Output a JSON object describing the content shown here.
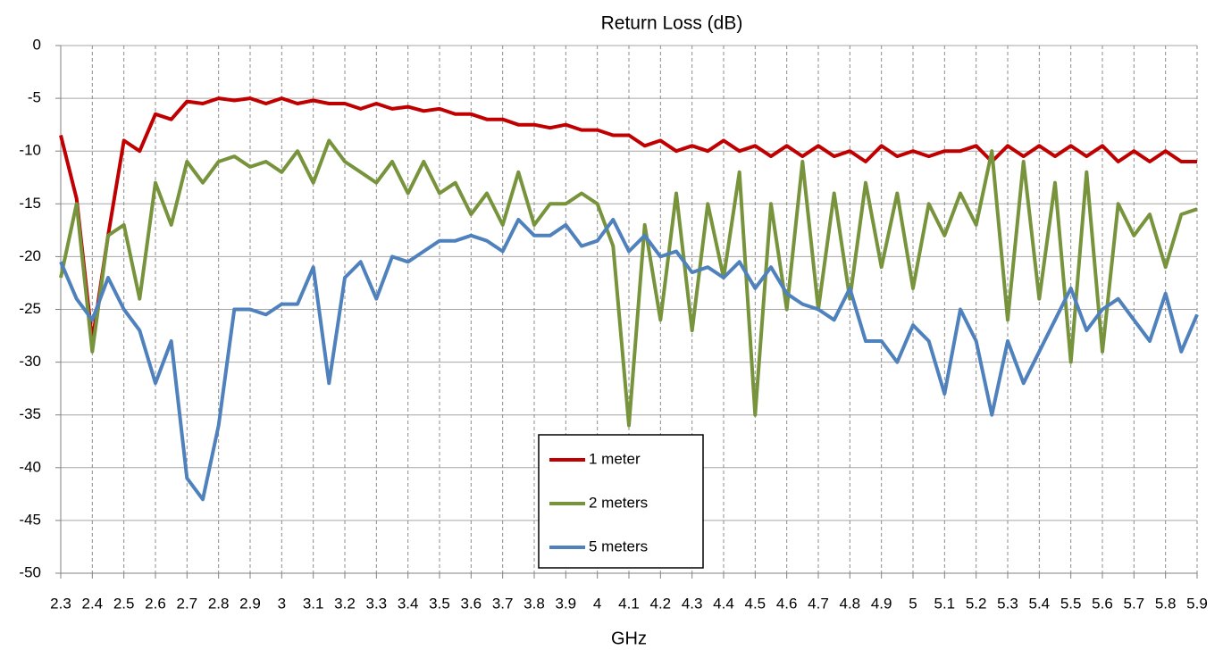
{
  "chart_data": {
    "type": "line",
    "title": "Return Loss (dB)",
    "xlabel": "GHz",
    "x": [
      2.3,
      2.35,
      2.4,
      2.45,
      2.5,
      2.55,
      2.6,
      2.65,
      2.7,
      2.75,
      2.8,
      2.85,
      2.9,
      2.95,
      3.0,
      3.05,
      3.1,
      3.15,
      3.2,
      3.25,
      3.3,
      3.35,
      3.4,
      3.45,
      3.5,
      3.55,
      3.6,
      3.65,
      3.7,
      3.75,
      3.8,
      3.85,
      3.9,
      3.95,
      4.0,
      4.05,
      4.1,
      4.15,
      4.2,
      4.25,
      4.3,
      4.35,
      4.4,
      4.45,
      4.5,
      4.55,
      4.6,
      4.65,
      4.7,
      4.75,
      4.8,
      4.85,
      4.9,
      4.95,
      5.0,
      5.05,
      5.1,
      5.15,
      5.2,
      5.25,
      5.3,
      5.35,
      5.4,
      5.45,
      5.5,
      5.55,
      5.6,
      5.65,
      5.7,
      5.75,
      5.8,
      5.85,
      5.9
    ],
    "series": [
      {
        "name": "1 meter",
        "color": "#c00000",
        "values": [
          -8.5,
          -14.5,
          -28,
          -18,
          -9,
          -10,
          -6.5,
          -7,
          -5.3,
          -5.5,
          -5,
          -5.2,
          -5,
          -5.5,
          -5,
          -5.5,
          -5.2,
          -5.5,
          -5.5,
          -6,
          -5.5,
          -6,
          -5.8,
          -6.2,
          -6,
          -6.5,
          -6.5,
          -7,
          -7,
          -7.5,
          -7.5,
          -7.8,
          -7.5,
          -8,
          -8,
          -8.5,
          -8.5,
          -9.5,
          -9,
          -10,
          -9.5,
          -10,
          -9,
          -10,
          -9.5,
          -10.5,
          -9.5,
          -10.5,
          -9.5,
          -10.5,
          -10,
          -11,
          -9.5,
          -10.5,
          -10,
          -10.5,
          -10,
          -10,
          -9.5,
          -11,
          -9.5,
          -10.5,
          -9.5,
          -10.5,
          -9.5,
          -10.5,
          -9.5,
          -11,
          -10,
          -11,
          -10,
          -11,
          -11
        ]
      },
      {
        "name": "2 meters",
        "color": "#77933c",
        "values": [
          -22,
          -15,
          -29,
          -18,
          -17,
          -24,
          -13,
          -17,
          -11,
          -13,
          -11,
          -10.5,
          -11.5,
          -11,
          -12,
          -10,
          -13,
          -9,
          -11,
          -12,
          -13,
          -11,
          -14,
          -11,
          -14,
          -13,
          -16,
          -14,
          -17,
          -12,
          -17,
          -15,
          -15,
          -14,
          -15,
          -19,
          -36,
          -17,
          -26,
          -14,
          -27,
          -15,
          -22,
          -12,
          -35,
          -15,
          -25,
          -11,
          -25,
          -14,
          -24,
          -13,
          -21,
          -14,
          -23,
          -15,
          -18,
          -14,
          -17,
          -10,
          -26,
          -11,
          -24,
          -13,
          -30,
          -12,
          -29,
          -15,
          -18,
          -16,
          -21,
          -16,
          -15.5
        ]
      },
      {
        "name": "5 meters",
        "color": "#4f81bd",
        "values": [
          -20.5,
          -24,
          -26,
          -22,
          -25,
          -27,
          -32,
          -28,
          -41,
          -43,
          -36,
          -25,
          -25,
          -25.5,
          -24.5,
          -24.5,
          -21,
          -32,
          -22,
          -20.5,
          -24,
          -20,
          -20.5,
          -19.5,
          -18.5,
          -18.5,
          -18,
          -18.5,
          -19.5,
          -16.5,
          -18,
          -18,
          -17,
          -19,
          -18.5,
          -16.5,
          -19.5,
          -18,
          -20,
          -19.5,
          -21.5,
          -21,
          -22,
          -20.5,
          -23,
          -21,
          -23.5,
          -24.5,
          -25,
          -26,
          -23,
          -28,
          -28,
          -30,
          -26.5,
          -28,
          -33,
          -25,
          -28,
          -35,
          -28,
          -32,
          -29,
          -26,
          -23,
          -27,
          -25,
          -24,
          -26,
          -28,
          -23.5,
          -29,
          -25.5
        ]
      }
    ],
    "xlim": [
      2.3,
      5.9
    ],
    "xticks": [
      2.3,
      2.4,
      2.5,
      2.6,
      2.7,
      2.8,
      2.9,
      3,
      3.1,
      3.2,
      3.3,
      3.4,
      3.5,
      3.6,
      3.7,
      3.8,
      3.9,
      4,
      4.1,
      4.2,
      4.3,
      4.4,
      4.5,
      4.6,
      4.7,
      4.8,
      4.9,
      5,
      5.1,
      5.2,
      5.3,
      5.4,
      5.5,
      5.6,
      5.7,
      5.8,
      5.9
    ],
    "ylim": [
      -50,
      0
    ],
    "yticks": [
      -50,
      -45,
      -40,
      -35,
      -30,
      -25,
      -20,
      -15,
      -10,
      -5,
      0
    ],
    "grid": true,
    "legend": "lower center"
  }
}
